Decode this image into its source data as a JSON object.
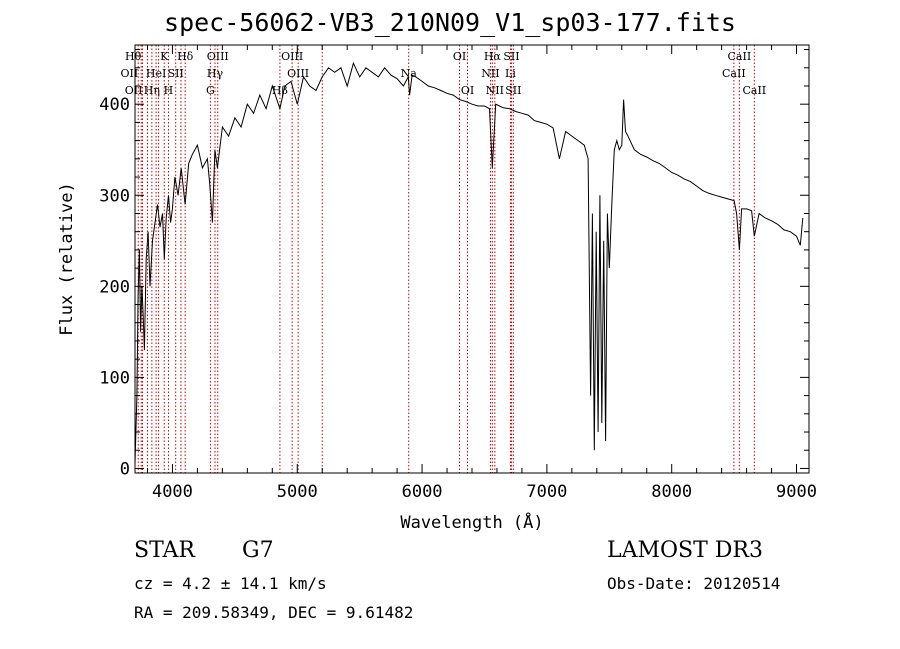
{
  "title": "spec-56062-VB3_210N09_V1_sp03-177.fits",
  "info": {
    "object_class": "STAR",
    "subclass": "G7",
    "survey": "LAMOST DR3",
    "cz": "cz = 4.2 ± 14.1 km/s",
    "obs_date": "Obs-Date: 20120514",
    "radec": "RA = 209.58349, DEC =    9.61482"
  },
  "chart_data": {
    "type": "line",
    "title": "spec-56062-VB3_210N09_V1_sp03-177.fits",
    "xlabel": "Wavelength (Å)",
    "ylabel": "Flux (relative)",
    "xlim": [
      3700,
      9100
    ],
    "ylim": [
      -5,
      465
    ],
    "xticks": [
      4000,
      5000,
      6000,
      7000,
      8000,
      9000
    ],
    "yticks": [
      0,
      100,
      200,
      300,
      400
    ],
    "line_color": "#000000",
    "marker_color": "#cc0000",
    "series": [
      {
        "name": "flux",
        "x": [
          3700,
          3715,
          3725,
          3735,
          3745,
          3755,
          3765,
          3775,
          3790,
          3805,
          3820,
          3840,
          3860,
          3880,
          3900,
          3920,
          3935,
          3950,
          3968,
          3985,
          4000,
          4020,
          4045,
          4070,
          4101,
          4130,
          4160,
          4200,
          4240,
          4280,
          4300,
          4320,
          4340,
          4360,
          4400,
          4450,
          4500,
          4550,
          4600,
          4650,
          4700,
          4750,
          4800,
          4861,
          4900,
          4950,
          5000,
          5050,
          5100,
          5150,
          5200,
          5250,
          5300,
          5350,
          5400,
          5450,
          5500,
          5550,
          5600,
          5650,
          5700,
          5750,
          5800,
          5850,
          5890,
          5900,
          5920,
          5950,
          6000,
          6050,
          6100,
          6150,
          6200,
          6250,
          6300,
          6350,
          6400,
          6450,
          6500,
          6540,
          6563,
          6590,
          6620,
          6650,
          6700,
          6750,
          6800,
          6850,
          6900,
          6950,
          7000,
          7050,
          7100,
          7150,
          7200,
          7250,
          7300,
          7330,
          7350,
          7365,
          7380,
          7395,
          7410,
          7425,
          7440,
          7455,
          7470,
          7485,
          7500,
          7520,
          7540,
          7560,
          7580,
          7600,
          7615,
          7630,
          7650,
          7700,
          7750,
          7800,
          7850,
          7900,
          7950,
          8000,
          8050,
          8100,
          8150,
          8200,
          8250,
          8300,
          8350,
          8400,
          8450,
          8500,
          8520,
          8542,
          8560,
          8600,
          8640,
          8662,
          8700,
          8750,
          8800,
          8850,
          8900,
          8950,
          9000,
          9030,
          9050
        ],
        "values": [
          5,
          80,
          190,
          240,
          150,
          200,
          170,
          130,
          230,
          260,
          200,
          250,
          270,
          290,
          265,
          280,
          230,
          275,
          300,
          270,
          285,
          320,
          300,
          330,
          290,
          335,
          345,
          355,
          330,
          340,
          310,
          270,
          350,
          330,
          375,
          365,
          385,
          375,
          400,
          390,
          410,
          395,
          420,
          395,
          420,
          425,
          400,
          430,
          420,
          415,
          430,
          440,
          435,
          440,
          420,
          445,
          430,
          440,
          435,
          430,
          440,
          432,
          428,
          420,
          430,
          410,
          432,
          430,
          425,
          420,
          418,
          415,
          412,
          410,
          405,
          403,
          400,
          398,
          398,
          395,
          330,
          400,
          398,
          396,
          395,
          392,
          390,
          388,
          382,
          380,
          378,
          374,
          340,
          370,
          365,
          360,
          355,
          340,
          80,
          280,
          20,
          260,
          40,
          300,
          50,
          250,
          30,
          280,
          220,
          290,
          350,
          360,
          350,
          355,
          405,
          370,
          365,
          350,
          345,
          342,
          338,
          335,
          330,
          325,
          322,
          318,
          315,
          310,
          305,
          302,
          300,
          298,
          296,
          294,
          280,
          240,
          285,
          285,
          283,
          255,
          280,
          275,
          272,
          268,
          262,
          260,
          255,
          245,
          275
        ]
      }
    ],
    "lines": [
      {
        "wave": 3726,
        "tier": 1,
        "label": "OII",
        "anchor": "end"
      },
      {
        "wave": 3750,
        "tier": 0,
        "label": "Hθ",
        "anchor": "end"
      },
      {
        "wave": 3760,
        "tier": 2,
        "label": "OII",
        "anchor": "end"
      },
      {
        "wave": 3800,
        "tier": 0,
        "label": "",
        "anchor": "middle"
      },
      {
        "wave": 3835,
        "tier": 2,
        "label": "Hη",
        "anchor": "middle"
      },
      {
        "wave": 3869,
        "tier": 1,
        "label": "HeI",
        "anchor": "middle"
      },
      {
        "wave": 3889,
        "tier": 0,
        "label": "",
        "anchor": "middle"
      },
      {
        "wave": 3934,
        "tier": 0,
        "label": "K",
        "anchor": "middle"
      },
      {
        "wave": 3968,
        "tier": 2,
        "label": "H",
        "anchor": "middle"
      },
      {
        "wave": 4026,
        "tier": 1,
        "label": "SII",
        "anchor": "middle"
      },
      {
        "wave": 4068,
        "tier": 0,
        "label": "",
        "anchor": "middle"
      },
      {
        "wave": 4102,
        "tier": 0,
        "label": "Hδ",
        "anchor": "middle"
      },
      {
        "wave": 4304,
        "tier": 2,
        "label": "G",
        "anchor": "middle"
      },
      {
        "wave": 4341,
        "tier": 1,
        "label": "Hγ",
        "anchor": "middle"
      },
      {
        "wave": 4363,
        "tier": 0,
        "label": "OIII",
        "anchor": "middle"
      },
      {
        "wave": 4861,
        "tier": 2,
        "label": "Hβ",
        "anchor": "middle"
      },
      {
        "wave": 4959,
        "tier": 0,
        "label": "OIII",
        "anchor": "middle"
      },
      {
        "wave": 5007,
        "tier": 1,
        "label": "OIII",
        "anchor": "middle"
      },
      {
        "wave": 5200,
        "tier": 0,
        "label": "",
        "anchor": "middle"
      },
      {
        "wave": 5893,
        "tier": 1,
        "label": "Na",
        "anchor": "middle"
      },
      {
        "wave": 6300,
        "tier": 0,
        "label": "OI",
        "anchor": "middle"
      },
      {
        "wave": 6364,
        "tier": 2,
        "label": "OI",
        "anchor": "middle"
      },
      {
        "wave": 6548,
        "tier": 1,
        "label": "NII",
        "anchor": "middle"
      },
      {
        "wave": 6563,
        "tier": 0,
        "label": "Hα",
        "anchor": "middle"
      },
      {
        "wave": 6583,
        "tier": 2,
        "label": "NII",
        "anchor": "middle"
      },
      {
        "wave": 6708,
        "tier": 1,
        "label": "Li",
        "anchor": "middle"
      },
      {
        "wave": 6716,
        "tier": 0,
        "label": "SII",
        "anchor": "middle"
      },
      {
        "wave": 6731,
        "tier": 2,
        "label": "SII",
        "anchor": "middle"
      },
      {
        "wave": 8498,
        "tier": 1,
        "label": "CaII",
        "anchor": "middle"
      },
      {
        "wave": 8542,
        "tier": 0,
        "label": "CaII",
        "anchor": "middle"
      },
      {
        "wave": 8662,
        "tier": 2,
        "label": "CaII",
        "anchor": "middle"
      }
    ]
  }
}
